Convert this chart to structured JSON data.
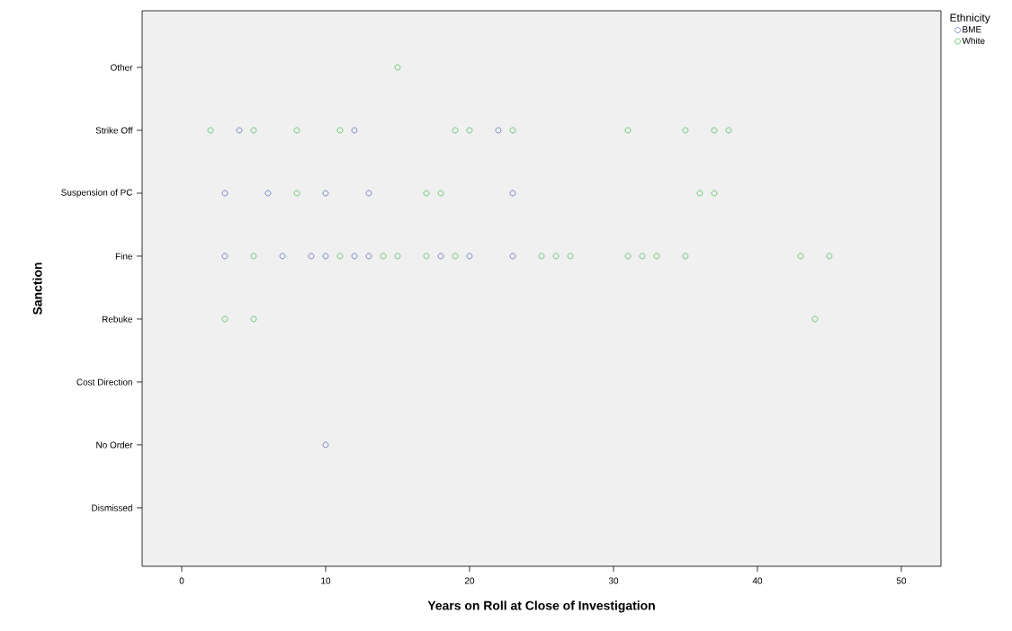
{
  "chart_data": {
    "type": "scatter",
    "orientation": "horizontal",
    "xlabel": "Years on Roll at Close of Investigation",
    "ylabel": "Sanction",
    "legend_title": "Ethnicity",
    "categories": [
      "Other",
      "Strike Off",
      "Suspension of PC",
      "Fine",
      "Rebuke",
      "Cost Direction",
      "No Order",
      "Dismissed"
    ],
    "xlim": [
      -2.75,
      52.75
    ],
    "xticks": [
      0,
      10,
      20,
      30,
      40,
      50
    ],
    "grid": false,
    "legend": "top right",
    "marker": "circle",
    "series": [
      {
        "name": "BME",
        "color": "#6b7fc4",
        "x": [
          "Strike Off",
          "Strike Off",
          "Strike Off",
          "Suspension of PC",
          "Suspension of PC",
          "Suspension of PC",
          "Suspension of PC",
          "Suspension of PC",
          "Fine",
          "Fine",
          "Fine",
          "Fine",
          "Fine",
          "Fine",
          "Fine",
          "Fine",
          "Fine",
          "No Order"
        ],
        "values": [
          4,
          12,
          22,
          3,
          6,
          10,
          13,
          23,
          3,
          7,
          9,
          10,
          12,
          13,
          18,
          20,
          23,
          10
        ]
      },
      {
        "name": "White",
        "color": "#5ec46a",
        "x": [
          "Other",
          "Strike Off",
          "Strike Off",
          "Strike Off",
          "Strike Off",
          "Strike Off",
          "Strike Off",
          "Strike Off",
          "Strike Off",
          "Strike Off",
          "Strike Off",
          "Strike Off",
          "Suspension of PC",
          "Suspension of PC",
          "Suspension of PC",
          "Suspension of PC",
          "Suspension of PC",
          "Fine",
          "Fine",
          "Fine",
          "Fine",
          "Fine",
          "Fine",
          "Fine",
          "Fine",
          "Fine",
          "Fine",
          "Fine",
          "Fine",
          "Fine",
          "Fine",
          "Fine",
          "Rebuke",
          "Rebuke",
          "Rebuke"
        ],
        "values": [
          15,
          2,
          5,
          8,
          11,
          19,
          20,
          23,
          31,
          35,
          37,
          38,
          8,
          17,
          18,
          36,
          37,
          5,
          11,
          14,
          15,
          17,
          19,
          25,
          26,
          27,
          31,
          32,
          33,
          35,
          43,
          45,
          3,
          5,
          44
        ]
      }
    ]
  }
}
